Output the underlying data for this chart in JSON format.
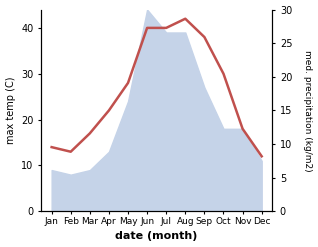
{
  "months": [
    "Jan",
    "Feb",
    "Mar",
    "Apr",
    "May",
    "Jun",
    "Jul",
    "Aug",
    "Sep",
    "Oct",
    "Nov",
    "Dec"
  ],
  "temp": [
    14,
    13,
    17,
    22,
    28,
    40,
    40,
    42,
    38,
    30,
    18,
    12
  ],
  "precip": [
    9,
    8,
    9,
    13,
    24,
    44,
    39,
    39,
    27,
    18,
    18,
    11
  ],
  "precip_scale_factor": 1.4667,
  "temp_color": "#c0504d",
  "precip_fill_color": "#c5d3e8",
  "temp_ylim": [
    0,
    44
  ],
  "precip_ylim": [
    0,
    30
  ],
  "temp_yticks": [
    0,
    10,
    20,
    30,
    40
  ],
  "precip_yticks": [
    0,
    5,
    10,
    15,
    20,
    25,
    30
  ],
  "ylabel_left": "max temp (C)",
  "ylabel_right": "med. precipitation (kg/m2)",
  "xlabel": "date (month)",
  "figsize": [
    3.18,
    2.47
  ],
  "dpi": 100
}
